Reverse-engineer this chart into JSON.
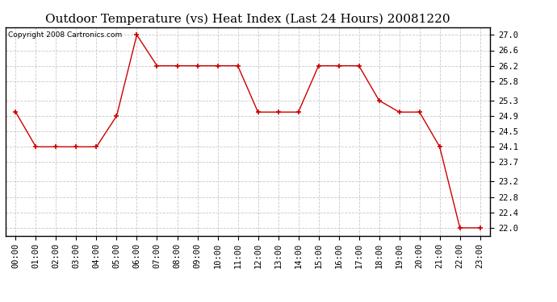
{
  "title": "Outdoor Temperature (vs) Heat Index (Last 24 Hours) 20081220",
  "copyright_text": "Copyright 2008 Cartronics.com",
  "x_labels": [
    "00:00",
    "01:00",
    "02:00",
    "03:00",
    "04:00",
    "05:00",
    "06:00",
    "07:00",
    "08:00",
    "09:00",
    "10:00",
    "11:00",
    "12:00",
    "13:00",
    "14:00",
    "15:00",
    "16:00",
    "17:00",
    "18:00",
    "19:00",
    "20:00",
    "21:00",
    "22:00",
    "23:00"
  ],
  "y_values": [
    25.0,
    24.1,
    24.1,
    24.1,
    24.1,
    24.9,
    27.0,
    26.2,
    26.2,
    26.2,
    26.2,
    26.2,
    25.0,
    25.0,
    25.0,
    26.2,
    26.2,
    26.2,
    25.3,
    25.0,
    25.0,
    24.1,
    22.0,
    22.0
  ],
  "y_ticks": [
    22.0,
    22.4,
    22.8,
    23.2,
    23.7,
    24.1,
    24.5,
    24.9,
    25.3,
    25.8,
    26.2,
    26.6,
    27.0
  ],
  "ylim": [
    21.8,
    27.2
  ],
  "line_color": "#cc0000",
  "marker": "+",
  "marker_color": "#cc0000",
  "bg_color": "#ffffff",
  "grid_color": "#c8c8c8",
  "title_fontsize": 11,
  "tick_fontsize": 7.5,
  "copyright_fontsize": 6.5
}
